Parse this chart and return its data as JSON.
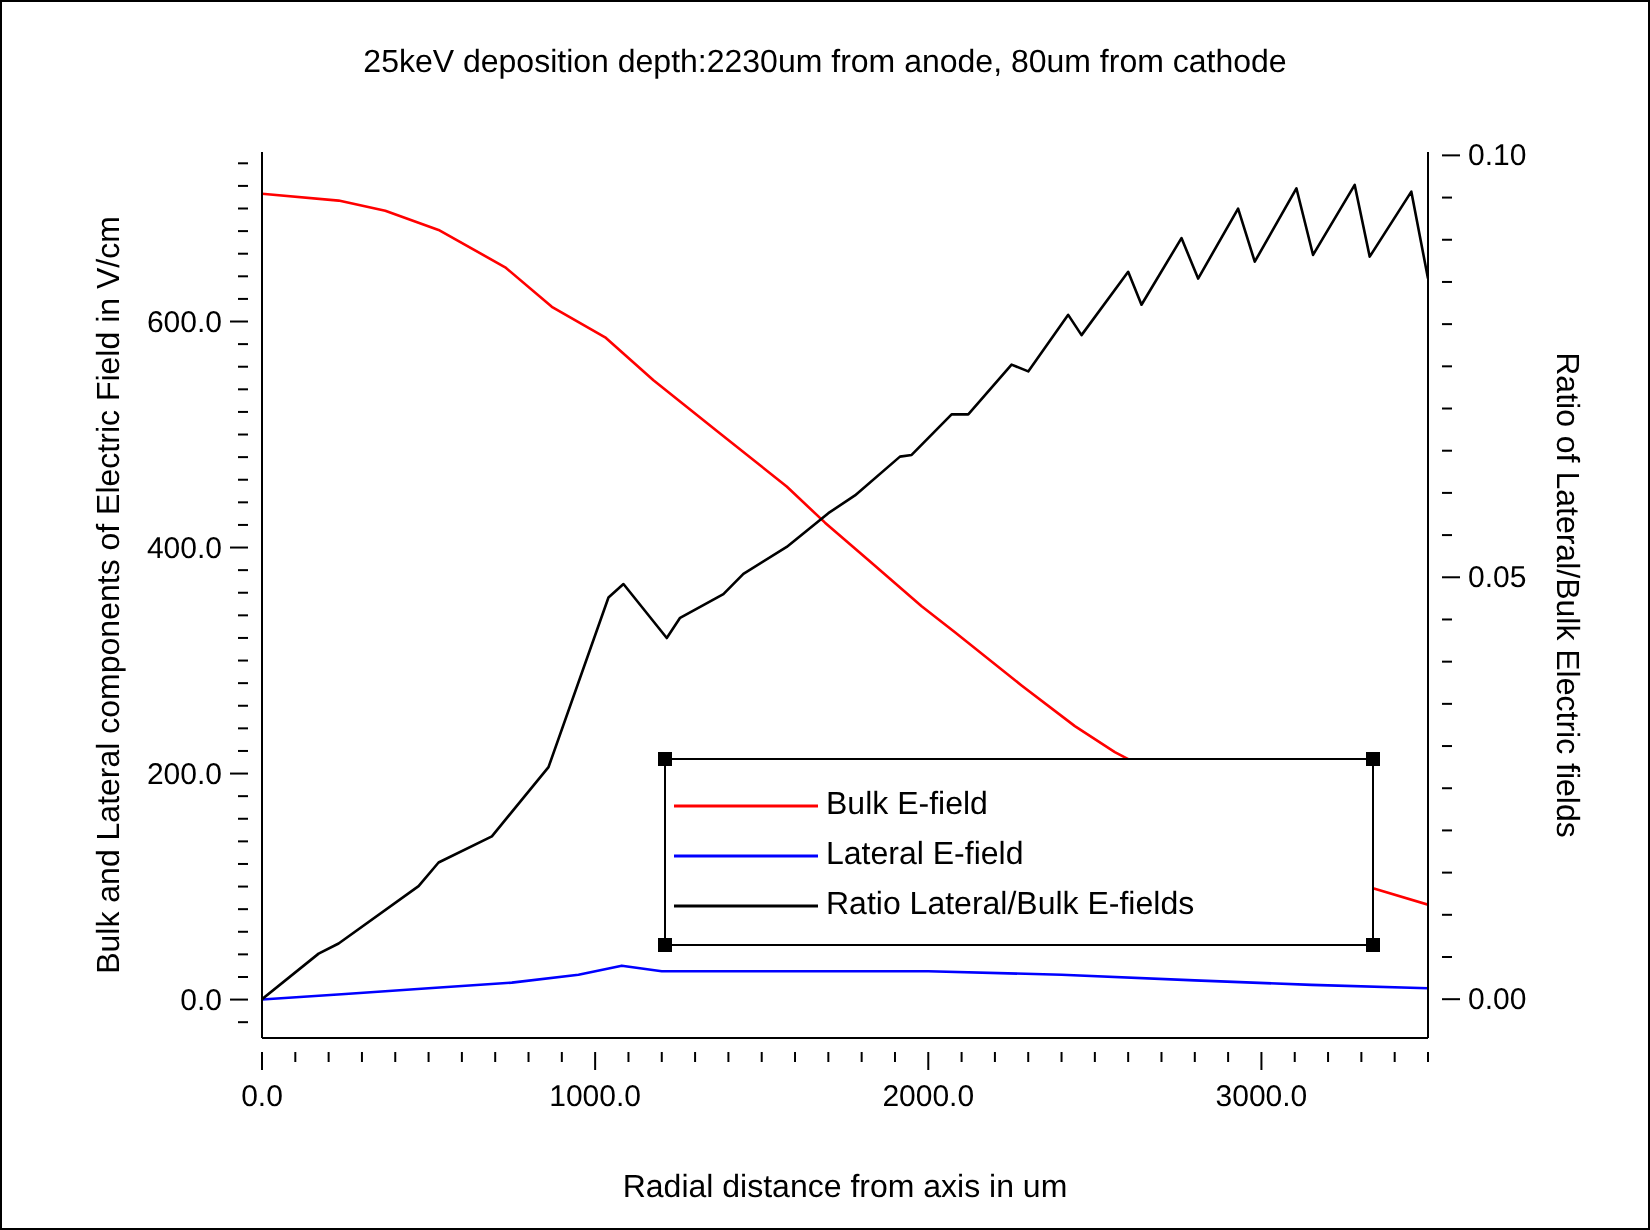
{
  "chart_data": {
    "type": "line",
    "title": "25keV deposition depth:2230um from anode, 80um from cathode",
    "xlabel": "Radial distance from axis in um",
    "ylabel": "Bulk and Lateral components of Electric Field in V/cm",
    "y2label": "Ratio of Lateral/Bulk Electric fields",
    "xlim": [
      0,
      3500
    ],
    "xticks": [
      {
        "value": 0,
        "label": "0.0"
      },
      {
        "value": 100,
        "label": null
      },
      {
        "value": 200,
        "label": null
      },
      {
        "value": 300,
        "label": null
      },
      {
        "value": 400,
        "label": null
      },
      {
        "value": 500,
        "label": null
      },
      {
        "value": 600,
        "label": null
      },
      {
        "value": 700,
        "label": null
      },
      {
        "value": 800,
        "label": null
      },
      {
        "value": 900,
        "label": null
      },
      {
        "value": 1000,
        "label": "1000.0"
      },
      {
        "value": 1100,
        "label": null
      },
      {
        "value": 1200,
        "label": null
      },
      {
        "value": 1300,
        "label": null
      },
      {
        "value": 1400,
        "label": null
      },
      {
        "value": 1500,
        "label": null
      },
      {
        "value": 1600,
        "label": null
      },
      {
        "value": 1700,
        "label": null
      },
      {
        "value": 1800,
        "label": null
      },
      {
        "value": 1900,
        "label": null
      },
      {
        "value": 2000,
        "label": "2000.0"
      },
      {
        "value": 2100,
        "label": null
      },
      {
        "value": 2200,
        "label": null
      },
      {
        "value": 2300,
        "label": null
      },
      {
        "value": 2400,
        "label": null
      },
      {
        "value": 2500,
        "label": null
      },
      {
        "value": 2600,
        "label": null
      },
      {
        "value": 2700,
        "label": null
      },
      {
        "value": 2800,
        "label": null
      },
      {
        "value": 2900,
        "label": null
      },
      {
        "value": 3000,
        "label": "3000.0"
      },
      {
        "value": 3100,
        "label": null
      },
      {
        "value": 3200,
        "label": null
      },
      {
        "value": 3300,
        "label": null
      },
      {
        "value": 3400,
        "label": null
      },
      {
        "value": 3500,
        "label": null
      }
    ],
    "ylim": [
      -34,
      750
    ],
    "yticks": [
      {
        "value": -20,
        "label": null
      },
      {
        "value": 0,
        "label": "0.0"
      },
      {
        "value": 20,
        "label": null
      },
      {
        "value": 40,
        "label": null
      },
      {
        "value": 60,
        "label": null
      },
      {
        "value": 80,
        "label": null
      },
      {
        "value": 100,
        "label": null
      },
      {
        "value": 120,
        "label": null
      },
      {
        "value": 140,
        "label": null
      },
      {
        "value": 160,
        "label": null
      },
      {
        "value": 180,
        "label": null
      },
      {
        "value": 200,
        "label": "200.0"
      },
      {
        "value": 220,
        "label": null
      },
      {
        "value": 240,
        "label": null
      },
      {
        "value": 260,
        "label": null
      },
      {
        "value": 280,
        "label": null
      },
      {
        "value": 300,
        "label": null
      },
      {
        "value": 320,
        "label": null
      },
      {
        "value": 340,
        "label": null
      },
      {
        "value": 360,
        "label": null
      },
      {
        "value": 380,
        "label": null
      },
      {
        "value": 400,
        "label": "400.0"
      },
      {
        "value": 420,
        "label": null
      },
      {
        "value": 440,
        "label": null
      },
      {
        "value": 460,
        "label": null
      },
      {
        "value": 480,
        "label": null
      },
      {
        "value": 500,
        "label": null
      },
      {
        "value": 520,
        "label": null
      },
      {
        "value": 540,
        "label": null
      },
      {
        "value": 560,
        "label": null
      },
      {
        "value": 580,
        "label": null
      },
      {
        "value": 600,
        "label": "600.0"
      },
      {
        "value": 620,
        "label": null
      },
      {
        "value": 640,
        "label": null
      },
      {
        "value": 660,
        "label": null
      },
      {
        "value": 680,
        "label": null
      },
      {
        "value": 700,
        "label": null
      },
      {
        "value": 720,
        "label": null
      },
      {
        "value": 740,
        "label": null
      }
    ],
    "y2lim": [
      -0.0046,
      0.1004
    ],
    "y2ticks": [
      {
        "value": 0,
        "label": "0.00"
      },
      {
        "value": 0.005,
        "label": null
      },
      {
        "value": 0.01,
        "label": null
      },
      {
        "value": 0.015,
        "label": null
      },
      {
        "value": 0.02,
        "label": null
      },
      {
        "value": 0.025,
        "label": null
      },
      {
        "value": 0.03,
        "label": null
      },
      {
        "value": 0.035,
        "label": null
      },
      {
        "value": 0.04,
        "label": null
      },
      {
        "value": 0.045,
        "label": null
      },
      {
        "value": 0.05,
        "label": "0.05"
      },
      {
        "value": 0.055,
        "label": null
      },
      {
        "value": 0.06,
        "label": null
      },
      {
        "value": 0.065,
        "label": null
      },
      {
        "value": 0.07,
        "label": null
      },
      {
        "value": 0.075,
        "label": null
      },
      {
        "value": 0.08,
        "label": null
      },
      {
        "value": 0.085,
        "label": null
      },
      {
        "value": 0.09,
        "label": null
      },
      {
        "value": 0.095,
        "label": null
      },
      {
        "value": 0.1,
        "label": "0.10"
      }
    ],
    "grid": false,
    "legend": "bottom right",
    "marker": "none",
    "line_style": "solid",
    "series": [
      {
        "name": "Bulk E-field",
        "color": "#ff0000",
        "x": [
          0,
          230,
          370,
          530,
          730,
          870,
          1030,
          1175,
          1375,
          1575,
          1690,
          1820,
          1980,
          2080,
          2280,
          2440,
          2560,
          3340,
          3500
        ],
        "values": [
          713,
          707,
          698,
          681,
          648,
          613,
          586,
          548,
          501,
          454,
          422,
          389,
          348,
          325,
          278,
          242,
          219,
          98,
          84
        ]
      },
      {
        "name": "Lateral E-field",
        "color": "#0000ff",
        "x": [
          0,
          250,
          500,
          750,
          950,
          1080,
          1200,
          2000,
          2400,
          2800,
          3150,
          3500
        ],
        "values": [
          0,
          5,
          10,
          15,
          22,
          30,
          25,
          25,
          22,
          17,
          13,
          10
        ]
      },
      {
        "name": "Ratio Lateral/Bulk E-fields",
        "color": "#000000",
        "axis": "y2",
        "x": [
          0,
          170,
          230,
          470,
          530,
          690,
          860,
          1040,
          1085,
          1215,
          1255,
          1385,
          1445,
          1575,
          1700,
          1780,
          1915,
          1950,
          2070,
          2120,
          2250,
          2300,
          2420,
          2460,
          2600,
          2640,
          2760,
          2810,
          2930,
          2980,
          3105,
          3155,
          3280,
          3325,
          3450,
          3500
        ],
        "values": [
          0,
          0.0054,
          0.0066,
          0.0134,
          0.0162,
          0.0193,
          0.0275,
          0.0476,
          0.0492,
          0.0428,
          0.0452,
          0.048,
          0.0504,
          0.0536,
          0.0576,
          0.0597,
          0.0643,
          0.0645,
          0.0693,
          0.0693,
          0.0752,
          0.0744,
          0.0811,
          0.0787,
          0.0862,
          0.0823,
          0.0902,
          0.0854,
          0.0937,
          0.0874,
          0.0961,
          0.0882,
          0.0965,
          0.088,
          0.0957,
          0.0854
        ]
      }
    ]
  }
}
